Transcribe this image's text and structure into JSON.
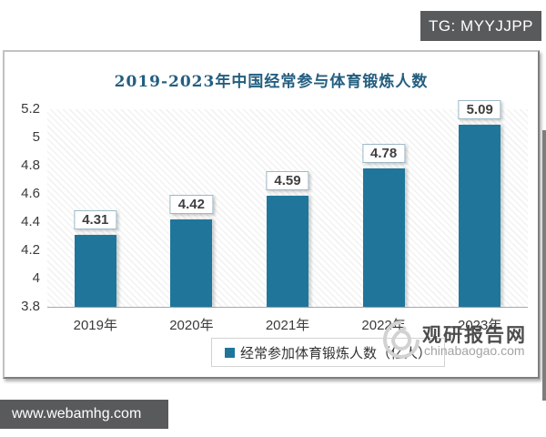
{
  "badge": {
    "text": "TG: MYYJJPP"
  },
  "footer": {
    "url": "www.webamhg.com"
  },
  "watermark": {
    "site_name": "观研报告网",
    "site_url": "chinabaogao.com"
  },
  "chart_data": {
    "type": "bar",
    "title": "2019-2023年中国经常参与体育锻炼人数",
    "categories": [
      "2019年",
      "2020年",
      "2021年",
      "2022年",
      "2023年"
    ],
    "values": [
      4.31,
      4.42,
      4.59,
      4.78,
      5.09
    ],
    "data_labels": [
      "4.31",
      "4.42",
      "4.59",
      "4.78",
      "5.09"
    ],
    "legend": "经常参加体育锻炼人数（亿人）",
    "legend_position": "bottom",
    "ylim": [
      3.8,
      5.2
    ],
    "yticks": [
      "3.8",
      "4",
      "4.2",
      "4.4",
      "4.6",
      "4.8",
      "5",
      "5.2"
    ],
    "ytick_values": [
      3.8,
      4.0,
      4.2,
      4.4,
      4.6,
      4.8,
      5.0,
      5.2
    ],
    "grid": false,
    "bar_color": "#20769a",
    "title_color": "#235e80"
  }
}
